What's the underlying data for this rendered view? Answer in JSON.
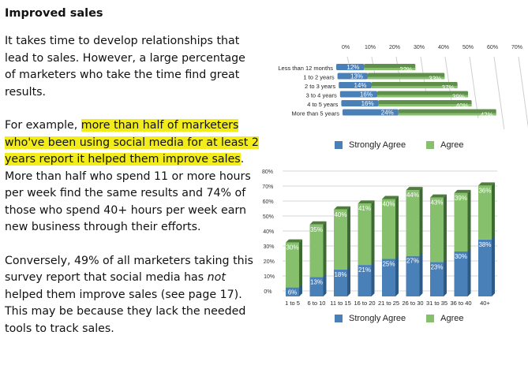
{
  "article": {
    "heading": "Improved sales",
    "para1": "It takes time to develop relationships that lead to sales. However, a large percentage of marketers who take the time find great results.",
    "para2_prefix": "For example, ",
    "para2_highlight": "more than half of marketers who've been using social media for at least 2 years report it helped them improve sales",
    "para2_suffix": ". More than half who spend 11 or more hours per week find the same results and 74% of those who spend 40+ hours per week earn new business through their efforts.",
    "para3_prefix": "Conversely, 49% of all marketers taking this survey report that social media has ",
    "para3_italic": "not",
    "para3_suffix": " helped them improve sales (see page 17). This may be because they lack the needed tools to track sales."
  },
  "colors": {
    "strongly_agree": "#4a80b8",
    "agree": "#86c06c",
    "highlight": "#f2ec1a"
  },
  "legend": {
    "strongly_agree": "Strongly Agree",
    "agree": "Agree"
  },
  "chart_data": [
    {
      "type": "bar",
      "orientation": "horizontal",
      "stacked": true,
      "title": "",
      "xlabel": "",
      "ylabel": "",
      "xlim": [
        0,
        70
      ],
      "x_ticks": [
        "0%",
        "10%",
        "20%",
        "30%",
        "40%",
        "50%",
        "60%",
        "70%"
      ],
      "categories": [
        "Less than 12 months",
        "1 to 2 years",
        "2 to 3 years",
        "3 to 4 years",
        "4 to 5 years",
        "More than 5 years"
      ],
      "series": [
        {
          "name": "Strongly Agree",
          "values": [
            12,
            13,
            14,
            16,
            16,
            24
          ],
          "labels": [
            "12%",
            "13%",
            "14%",
            "16%",
            "16%",
            "24%"
          ]
        },
        {
          "name": "Agree",
          "values": [
            22,
            33,
            37,
            39,
            40,
            42
          ],
          "labels": [
            "22%",
            "33%",
            "37%",
            "39%",
            "40%",
            "42%"
          ]
        }
      ],
      "legend_position": "bottom"
    },
    {
      "type": "bar",
      "orientation": "vertical",
      "stacked": true,
      "title": "",
      "xlabel": "",
      "ylabel": "",
      "ylim": [
        0,
        80
      ],
      "y_ticks": [
        "0%",
        "10%",
        "20%",
        "30%",
        "40%",
        "50%",
        "60%",
        "70%",
        "80%"
      ],
      "categories": [
        "1 to 5",
        "6 to 10",
        "11 to 15",
        "16 to 20",
        "21 to 25",
        "26 to 30",
        "31 to 35",
        "36 to 40",
        "40+"
      ],
      "series": [
        {
          "name": "Strongly Agree",
          "values": [
            6,
            13,
            18,
            21,
            25,
            27,
            23,
            30,
            38
          ],
          "labels": [
            "6%",
            "13%",
            "18%",
            "21%",
            "25%",
            "27%",
            "23%",
            "30%",
            "38%"
          ]
        },
        {
          "name": "Agree",
          "values": [
            30,
            35,
            40,
            41,
            40,
            44,
            43,
            39,
            36
          ],
          "labels": [
            "30%",
            "35%",
            "40%",
            "41%",
            "40%",
            "44%",
            "43%",
            "39%",
            "36%"
          ]
        }
      ],
      "grid": true,
      "legend_position": "bottom"
    }
  ]
}
